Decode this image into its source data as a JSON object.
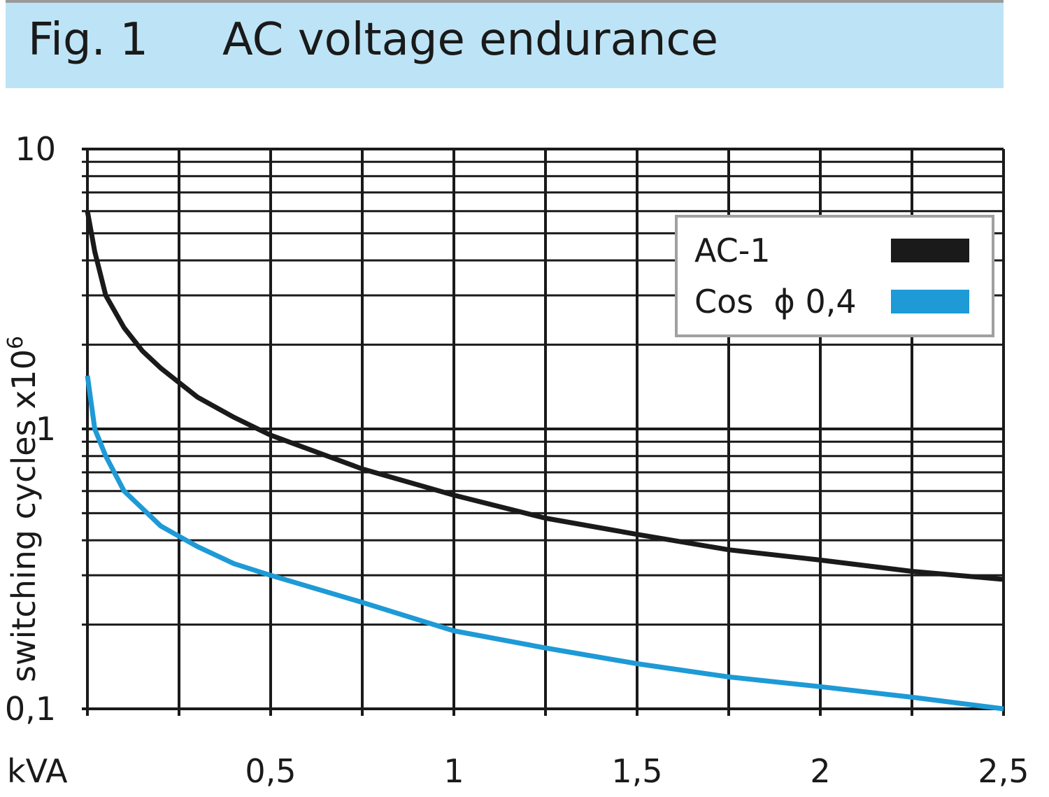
{
  "header": {
    "fig_label": "Fig. 1",
    "title": "AC voltage endurance",
    "background_color": "#bde4f6"
  },
  "chart_data": {
    "type": "line",
    "title": "AC voltage endurance",
    "xlabel": "kVA",
    "ylabel": "switching cycles  x10",
    "ylabel_superscript": "6",
    "y_scale": "log",
    "xlim": [
      0,
      2.5
    ],
    "ylim": [
      0.1,
      10
    ],
    "grid": true,
    "legend_position": "top-right",
    "x_ticks": [
      {
        "value": 0.5,
        "label": "0,5"
      },
      {
        "value": 1,
        "label": "1"
      },
      {
        "value": 1.5,
        "label": "1,5"
      },
      {
        "value": 2,
        "label": "2"
      },
      {
        "value": 2.5,
        "label": "2,5"
      }
    ],
    "y_ticks": [
      {
        "value": 0.1,
        "label": "0,1"
      },
      {
        "value": 1,
        "label": "1"
      },
      {
        "value": 10,
        "label": "10"
      }
    ],
    "series": [
      {
        "name": "AC-1",
        "color": "#1a1a1a",
        "x": [
          0.0,
          0.02,
          0.05,
          0.1,
          0.15,
          0.2,
          0.3,
          0.4,
          0.5,
          0.75,
          1.0,
          1.25,
          1.5,
          1.75,
          2.0,
          2.25,
          2.5
        ],
        "y": [
          6.0,
          4.3,
          3.0,
          2.3,
          1.9,
          1.65,
          1.3,
          1.1,
          0.95,
          0.72,
          0.58,
          0.48,
          0.42,
          0.37,
          0.34,
          0.31,
          0.29
        ]
      },
      {
        "name": "Cos  ϕ 0,4",
        "color": "#1e9ad6",
        "x": [
          0.0,
          0.02,
          0.05,
          0.1,
          0.15,
          0.2,
          0.3,
          0.4,
          0.5,
          0.75,
          1.0,
          1.25,
          1.5,
          1.75,
          2.0,
          2.25,
          2.5
        ],
        "y": [
          1.55,
          1.0,
          0.8,
          0.6,
          0.52,
          0.45,
          0.38,
          0.33,
          0.3,
          0.24,
          0.19,
          0.165,
          0.145,
          0.13,
          0.12,
          0.11,
          0.1
        ]
      }
    ]
  }
}
